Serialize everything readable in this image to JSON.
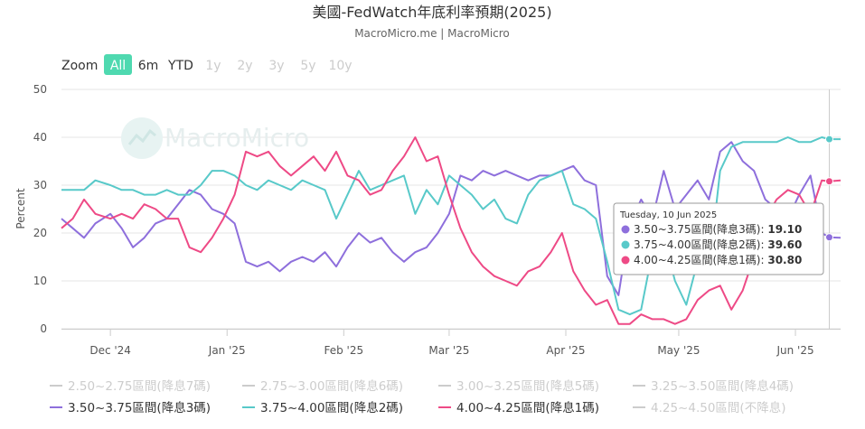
{
  "chart_data": {
    "type": "line",
    "title": "美國-FedWatch年底利率預期(2025)",
    "subtitle": "MacroMicro.me | MacroMicro",
    "watermark": "MacroMicro",
    "ylabel": "Percent",
    "ylim": [
      0,
      50
    ],
    "y_ticks": [
      "0",
      "10",
      "20",
      "30",
      "40",
      "50"
    ],
    "x_range": [
      "2024-11-18",
      "2025-06-13"
    ],
    "x_ticks": [
      {
        "label": "Dec '24",
        "date": "2024-12-01"
      },
      {
        "label": "Jan '25",
        "date": "2025-01-01"
      },
      {
        "label": "Feb '25",
        "date": "2025-02-01"
      },
      {
        "label": "Mar '25",
        "date": "2025-03-01"
      },
      {
        "label": "Apr '25",
        "date": "2025-04-01"
      },
      {
        "label": "May '25",
        "date": "2025-05-01"
      },
      {
        "label": "Jun '25",
        "date": "2025-06-01"
      }
    ],
    "zoom": {
      "label": "Zoom",
      "buttons": [
        "All",
        "6m",
        "YTD",
        "1y",
        "2y",
        "3y",
        "5y",
        "10y"
      ],
      "selected": "All"
    },
    "legend": [
      {
        "name": "2.50~2.75區間(降息7碼)",
        "color": "#cccccc",
        "visible": false
      },
      {
        "name": "2.75~3.00區間(降息6碼)",
        "color": "#cccccc",
        "visible": false
      },
      {
        "name": "3.00~3.25區間(降息5碼)",
        "color": "#cccccc",
        "visible": false
      },
      {
        "name": "3.25~3.50區間(降息4碼)",
        "color": "#cccccc",
        "visible": false
      },
      {
        "name": "3.50~3.75區間(降息3碼)",
        "color": "#8e6fdc",
        "visible": true
      },
      {
        "name": "3.75~4.00區間(降息2碼)",
        "color": "#58c9c9",
        "visible": true
      },
      {
        "name": "4.00~4.25區間(降息1碼)",
        "color": "#ee4a86",
        "visible": true
      },
      {
        "name": "4.25~4.50區間(不降息)",
        "color": "#cccccc",
        "visible": false
      }
    ],
    "tooltip": {
      "date": "Tuesday, 10 Jun 2025",
      "rows": [
        {
          "label": "3.50~3.75區間(降息3碼): ",
          "value": "19.10",
          "color": "#8e6fdc"
        },
        {
          "label": "3.75~4.00區間(降息2碼): ",
          "value": "39.60",
          "color": "#58c9c9"
        },
        {
          "label": "4.00~4.25區間(降息1碼): ",
          "value": "30.80",
          "color": "#ee4a86"
        }
      ]
    },
    "series": [
      {
        "name": "3.50~3.75區間(降息3碼)",
        "color": "#8e6fdc",
        "points": [
          [
            "2024-11-18",
            23
          ],
          [
            "2024-11-21",
            21
          ],
          [
            "2024-11-24",
            19
          ],
          [
            "2024-11-27",
            22
          ],
          [
            "2024-12-01",
            24
          ],
          [
            "2024-12-04",
            21
          ],
          [
            "2024-12-07",
            17
          ],
          [
            "2024-12-10",
            19
          ],
          [
            "2024-12-13",
            22
          ],
          [
            "2024-12-16",
            23
          ],
          [
            "2024-12-19",
            26
          ],
          [
            "2024-12-22",
            29
          ],
          [
            "2024-12-25",
            28
          ],
          [
            "2024-12-28",
            25
          ],
          [
            "2024-12-31",
            24
          ],
          [
            "2025-01-03",
            22
          ],
          [
            "2025-01-06",
            14
          ],
          [
            "2025-01-09",
            13
          ],
          [
            "2025-01-12",
            14
          ],
          [
            "2025-01-15",
            12
          ],
          [
            "2025-01-18",
            14
          ],
          [
            "2025-01-21",
            15
          ],
          [
            "2025-01-24",
            14
          ],
          [
            "2025-01-27",
            16
          ],
          [
            "2025-01-30",
            13
          ],
          [
            "2025-02-02",
            17
          ],
          [
            "2025-02-05",
            20
          ],
          [
            "2025-02-08",
            18
          ],
          [
            "2025-02-11",
            19
          ],
          [
            "2025-02-14",
            16
          ],
          [
            "2025-02-17",
            14
          ],
          [
            "2025-02-20",
            16
          ],
          [
            "2025-02-23",
            17
          ],
          [
            "2025-02-26",
            20
          ],
          [
            "2025-03-01",
            24
          ],
          [
            "2025-03-04",
            32
          ],
          [
            "2025-03-07",
            31
          ],
          [
            "2025-03-10",
            33
          ],
          [
            "2025-03-13",
            32
          ],
          [
            "2025-03-16",
            33
          ],
          [
            "2025-03-19",
            32
          ],
          [
            "2025-03-22",
            31
          ],
          [
            "2025-03-25",
            32
          ],
          [
            "2025-03-28",
            32
          ],
          [
            "2025-03-31",
            33
          ],
          [
            "2025-04-03",
            34
          ],
          [
            "2025-04-06",
            31
          ],
          [
            "2025-04-09",
            30
          ],
          [
            "2025-04-12",
            11
          ],
          [
            "2025-04-15",
            7
          ],
          [
            "2025-04-18",
            22
          ],
          [
            "2025-04-21",
            27
          ],
          [
            "2025-04-24",
            23
          ],
          [
            "2025-04-27",
            33
          ],
          [
            "2025-04-30",
            25
          ],
          [
            "2025-05-03",
            28
          ],
          [
            "2025-05-06",
            31
          ],
          [
            "2025-05-09",
            27
          ],
          [
            "2025-05-12",
            37
          ],
          [
            "2025-05-15",
            39
          ],
          [
            "2025-05-18",
            35
          ],
          [
            "2025-05-21",
            33
          ],
          [
            "2025-05-24",
            27
          ],
          [
            "2025-05-27",
            25
          ],
          [
            "2025-05-30",
            23
          ],
          [
            "2025-06-02",
            28
          ],
          [
            "2025-06-05",
            32
          ],
          [
            "2025-06-08",
            20
          ],
          [
            "2025-06-10",
            19.1
          ],
          [
            "2025-06-13",
            19
          ]
        ]
      },
      {
        "name": "3.75~4.00區間(降息2碼)",
        "color": "#58c9c9",
        "points": [
          [
            "2024-11-18",
            29
          ],
          [
            "2024-11-21",
            29
          ],
          [
            "2024-11-24",
            29
          ],
          [
            "2024-11-27",
            31
          ],
          [
            "2024-12-01",
            30
          ],
          [
            "2024-12-04",
            29
          ],
          [
            "2024-12-07",
            29
          ],
          [
            "2024-12-10",
            28
          ],
          [
            "2024-12-13",
            28
          ],
          [
            "2024-12-16",
            29
          ],
          [
            "2024-12-19",
            28
          ],
          [
            "2024-12-22",
            28
          ],
          [
            "2024-12-25",
            30
          ],
          [
            "2024-12-28",
            33
          ],
          [
            "2024-12-31",
            33
          ],
          [
            "2025-01-03",
            32
          ],
          [
            "2025-01-06",
            30
          ],
          [
            "2025-01-09",
            29
          ],
          [
            "2025-01-12",
            31
          ],
          [
            "2025-01-15",
            30
          ],
          [
            "2025-01-18",
            29
          ],
          [
            "2025-01-21",
            31
          ],
          [
            "2025-01-24",
            30
          ],
          [
            "2025-01-27",
            29
          ],
          [
            "2025-01-30",
            23
          ],
          [
            "2025-02-02",
            28
          ],
          [
            "2025-02-05",
            33
          ],
          [
            "2025-02-08",
            29
          ],
          [
            "2025-02-11",
            30
          ],
          [
            "2025-02-14",
            31
          ],
          [
            "2025-02-17",
            32
          ],
          [
            "2025-02-20",
            24
          ],
          [
            "2025-02-23",
            29
          ],
          [
            "2025-02-26",
            26
          ],
          [
            "2025-03-01",
            32
          ],
          [
            "2025-03-04",
            30
          ],
          [
            "2025-03-07",
            28
          ],
          [
            "2025-03-10",
            25
          ],
          [
            "2025-03-13",
            27
          ],
          [
            "2025-03-16",
            23
          ],
          [
            "2025-03-19",
            22
          ],
          [
            "2025-03-22",
            28
          ],
          [
            "2025-03-25",
            31
          ],
          [
            "2025-03-28",
            32
          ],
          [
            "2025-03-31",
            33
          ],
          [
            "2025-04-03",
            26
          ],
          [
            "2025-04-06",
            25
          ],
          [
            "2025-04-09",
            23
          ],
          [
            "2025-04-12",
            14
          ],
          [
            "2025-04-15",
            4
          ],
          [
            "2025-04-18",
            3
          ],
          [
            "2025-04-21",
            4
          ],
          [
            "2025-04-24",
            16
          ],
          [
            "2025-04-27",
            19
          ],
          [
            "2025-04-30",
            10
          ],
          [
            "2025-05-03",
            5
          ],
          [
            "2025-05-06",
            14
          ],
          [
            "2025-05-09",
            12
          ],
          [
            "2025-05-12",
            33
          ],
          [
            "2025-05-15",
            38
          ],
          [
            "2025-05-18",
            39
          ],
          [
            "2025-05-21",
            39
          ],
          [
            "2025-05-24",
            39
          ],
          [
            "2025-05-27",
            39
          ],
          [
            "2025-05-30",
            40
          ],
          [
            "2025-06-02",
            39
          ],
          [
            "2025-06-05",
            39
          ],
          [
            "2025-06-08",
            40
          ],
          [
            "2025-06-10",
            39.6
          ],
          [
            "2025-06-13",
            39.6
          ]
        ]
      },
      {
        "name": "4.00~4.25區間(降息1碼)",
        "color": "#ee4a86",
        "points": [
          [
            "2024-11-18",
            21
          ],
          [
            "2024-11-21",
            23
          ],
          [
            "2024-11-24",
            27
          ],
          [
            "2024-11-27",
            24
          ],
          [
            "2024-12-01",
            23
          ],
          [
            "2024-12-04",
            24
          ],
          [
            "2024-12-07",
            23
          ],
          [
            "2024-12-10",
            26
          ],
          [
            "2024-12-13",
            25
          ],
          [
            "2024-12-16",
            23
          ],
          [
            "2024-12-19",
            23
          ],
          [
            "2024-12-22",
            17
          ],
          [
            "2024-12-25",
            16
          ],
          [
            "2024-12-28",
            19
          ],
          [
            "2024-12-31",
            23
          ],
          [
            "2025-01-03",
            28
          ],
          [
            "2025-01-06",
            37
          ],
          [
            "2025-01-09",
            36
          ],
          [
            "2025-01-12",
            37
          ],
          [
            "2025-01-15",
            34
          ],
          [
            "2025-01-18",
            32
          ],
          [
            "2025-01-21",
            34
          ],
          [
            "2025-01-24",
            36
          ],
          [
            "2025-01-27",
            33
          ],
          [
            "2025-01-30",
            37
          ],
          [
            "2025-02-02",
            32
          ],
          [
            "2025-02-05",
            31
          ],
          [
            "2025-02-08",
            28
          ],
          [
            "2025-02-11",
            29
          ],
          [
            "2025-02-14",
            33
          ],
          [
            "2025-02-17",
            36
          ],
          [
            "2025-02-20",
            40
          ],
          [
            "2025-02-23",
            35
          ],
          [
            "2025-02-26",
            36
          ],
          [
            "2025-03-01",
            28
          ],
          [
            "2025-03-04",
            21
          ],
          [
            "2025-03-07",
            16
          ],
          [
            "2025-03-10",
            13
          ],
          [
            "2025-03-13",
            11
          ],
          [
            "2025-03-16",
            10
          ],
          [
            "2025-03-19",
            9
          ],
          [
            "2025-03-22",
            12
          ],
          [
            "2025-03-25",
            13
          ],
          [
            "2025-03-28",
            16
          ],
          [
            "2025-03-31",
            20
          ],
          [
            "2025-04-03",
            12
          ],
          [
            "2025-04-06",
            8
          ],
          [
            "2025-04-09",
            5
          ],
          [
            "2025-04-12",
            6
          ],
          [
            "2025-04-15",
            1
          ],
          [
            "2025-04-18",
            1
          ],
          [
            "2025-04-21",
            3
          ],
          [
            "2025-04-24",
            2
          ],
          [
            "2025-04-27",
            2
          ],
          [
            "2025-04-30",
            1
          ],
          [
            "2025-05-03",
            2
          ],
          [
            "2025-05-06",
            6
          ],
          [
            "2025-05-09",
            8
          ],
          [
            "2025-05-12",
            9
          ],
          [
            "2025-05-15",
            4
          ],
          [
            "2025-05-18",
            8
          ],
          [
            "2025-05-21",
            15
          ],
          [
            "2025-05-24",
            23
          ],
          [
            "2025-05-27",
            27
          ],
          [
            "2025-05-30",
            29
          ],
          [
            "2025-06-02",
            28
          ],
          [
            "2025-06-05",
            24
          ],
          [
            "2025-06-08",
            31
          ],
          [
            "2025-06-10",
            30.8
          ],
          [
            "2025-06-13",
            31
          ]
        ]
      }
    ]
  }
}
